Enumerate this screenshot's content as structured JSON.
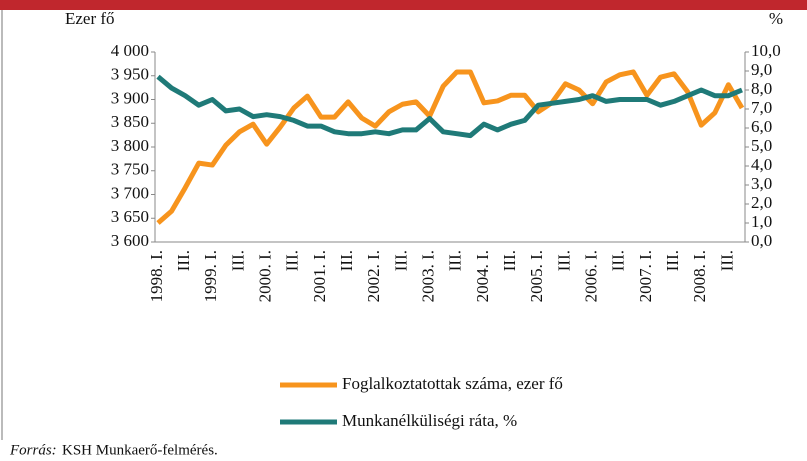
{
  "chart_data": {
    "type": "line",
    "y_label": "Ezer fő",
    "y2_label": "%",
    "categories": [
      "1998. I.",
      null,
      "III.",
      null,
      "1999. I.",
      null,
      "III.",
      null,
      "2000. I.",
      null,
      "III.",
      null,
      "2001. I.",
      null,
      "III.",
      null,
      "2002. I.",
      null,
      "III.",
      null,
      "2003. I.",
      null,
      "III.",
      null,
      "2004. I.",
      null,
      "III.",
      null,
      "2005. I.",
      null,
      "III.",
      null,
      "2006. I.",
      null,
      "III.",
      null,
      "2007. I.",
      null,
      "III.",
      null,
      "2008. I.",
      null,
      "III.",
      null
    ],
    "series": [
      {
        "name": "Foglalkoztatottak száma, ezer fő",
        "color": "#f7941d",
        "axis": "y",
        "values": [
          3640,
          3665,
          3714,
          3766,
          3762,
          3804,
          3832,
          3848,
          3806,
          3842,
          3882,
          3907,
          3863,
          3863,
          3895,
          3861,
          3844,
          3874,
          3890,
          3895,
          3865,
          3928,
          3958,
          3958,
          3893,
          3897,
          3909,
          3909,
          3874,
          3893,
          3933,
          3920,
          3891,
          3937,
          3952,
          3958,
          3909,
          3947,
          3954,
          3916,
          3846,
          3872,
          3931,
          3882
        ]
      },
      {
        "name": "Munkanélküliségi ráta, %",
        "color": "#1f7a78",
        "axis": "y2",
        "values": [
          8.7,
          8.1,
          7.7,
          7.2,
          7.5,
          6.9,
          7.0,
          6.6,
          6.7,
          6.6,
          6.4,
          6.1,
          6.1,
          5.8,
          5.7,
          5.7,
          5.8,
          5.7,
          5.9,
          5.9,
          6.5,
          5.8,
          5.7,
          5.6,
          6.2,
          5.9,
          6.2,
          6.4,
          7.2,
          7.3,
          7.4,
          7.5,
          7.7,
          7.4,
          7.5,
          7.5,
          7.5,
          7.2,
          7.4,
          7.7,
          8.0,
          7.7,
          7.7,
          8.0
        ]
      }
    ],
    "ylim": [
      3600,
      4000
    ],
    "yticks": [
      {
        "value": 3600,
        "label": "3 600"
      },
      {
        "value": 3650,
        "label": "3 650"
      },
      {
        "value": 3700,
        "label": "3 700"
      },
      {
        "value": 3750,
        "label": "3 750"
      },
      {
        "value": 3800,
        "label": "3 800"
      },
      {
        "value": 3850,
        "label": "3 850"
      },
      {
        "value": 3900,
        "label": "3 900"
      },
      {
        "value": 3950,
        "label": "3 950"
      },
      {
        "value": 4000,
        "label": "4 000"
      }
    ],
    "y2lim": [
      0,
      10
    ],
    "y2ticks": [
      {
        "value": 0,
        "label": "0,0"
      },
      {
        "value": 1,
        "label": "1,0"
      },
      {
        "value": 2,
        "label": "2,0"
      },
      {
        "value": 3,
        "label": "3,0"
      },
      {
        "value": 4,
        "label": "4,0"
      },
      {
        "value": 5,
        "label": "5,0"
      },
      {
        "value": 6,
        "label": "6,0"
      },
      {
        "value": 7,
        "label": "7,0"
      },
      {
        "value": 8,
        "label": "8,0"
      },
      {
        "value": 9,
        "label": "9,0"
      },
      {
        "value": 10,
        "label": "10,0"
      }
    ],
    "grid": false,
    "legend": "bottom",
    "source": {
      "label": "Forrás:",
      "text": "KSH Munkaerő-felmérés."
    }
  }
}
